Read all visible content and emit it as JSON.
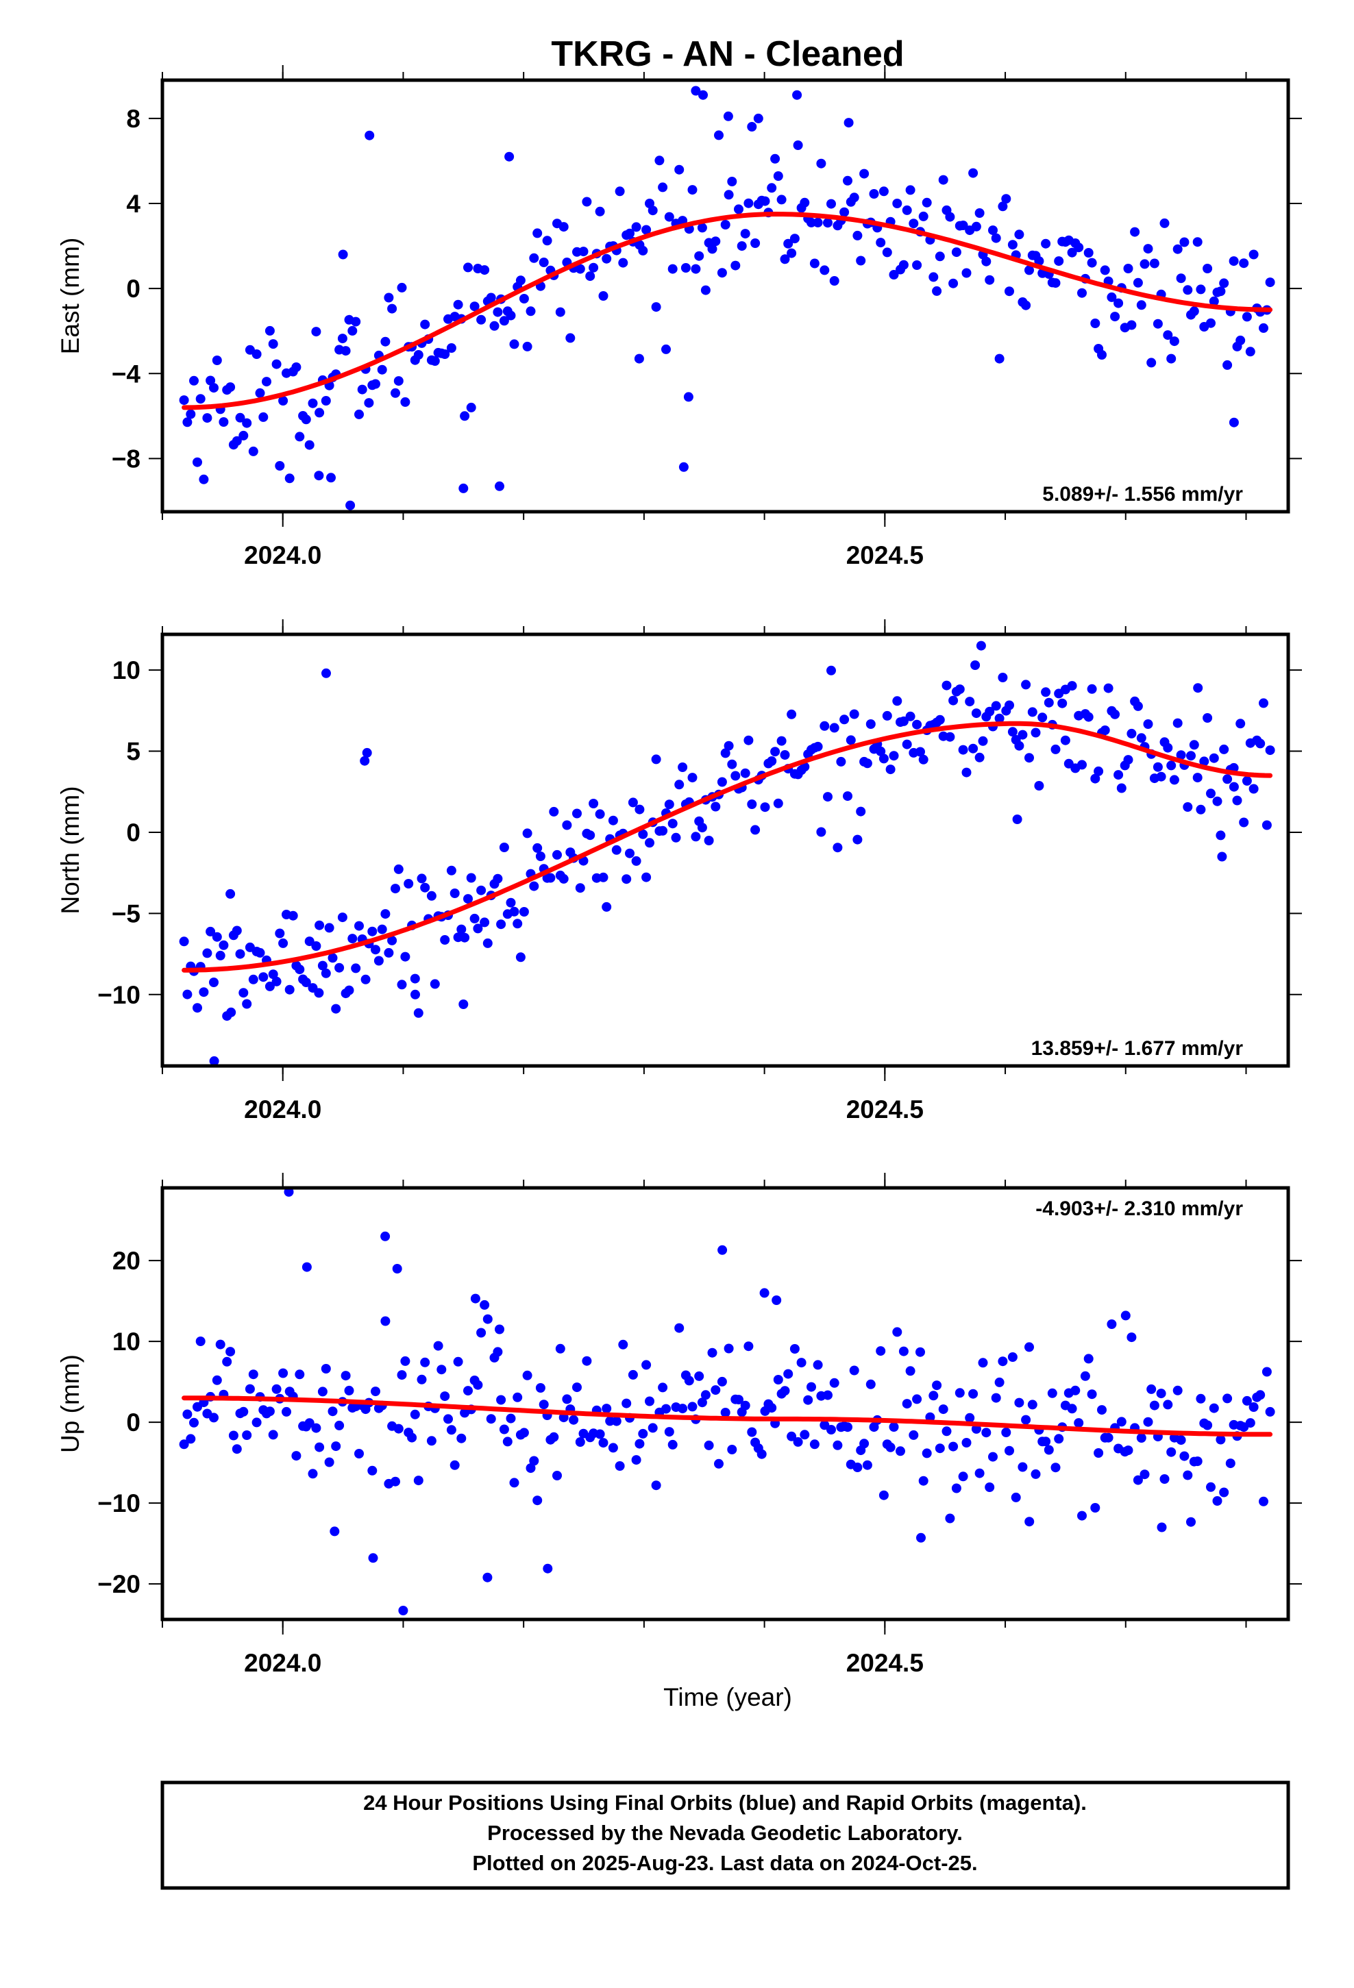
{
  "title": "TKRG  - AN - Cleaned",
  "xlabel": "Time (year)",
  "footer": {
    "line1": "24 Hour Positions Using Final Orbits (blue) and Rapid Orbits (magenta).",
    "line2": "Processed by the Nevada Geodetic Laboratory.",
    "line3": "Plotted on 2025-Aug-23. Last data on 2024-Oct-25."
  },
  "colors": {
    "points": "#0000ff",
    "fit": "#ff0000",
    "frame": "#000000"
  },
  "chart_data": [
    {
      "type": "scatter",
      "name": "east",
      "ylabel": "East (mm)",
      "rate_label": "5.089+/- 1.556 mm/yr",
      "rate_position": "bottom-right",
      "xlim": [
        2023.9,
        2024.835
      ],
      "ylim": [
        -10.5,
        9.8
      ],
      "x_ticks": [
        2024.0,
        2024.5
      ],
      "x_tick_labels": [
        "2024.0",
        "2024.5"
      ],
      "y_ticks": [
        -8,
        -4,
        0,
        4,
        8
      ],
      "y_tick_labels": [
        "−8",
        "−4",
        "0",
        "4",
        "8"
      ],
      "trend": {
        "start": [
          2023.918,
          -5.6
        ],
        "end": [
          2024.82,
          -1.0
        ],
        "peak": [
          2024.41,
          3.5
        ]
      },
      "outliers": [
        [
          2024.343,
          9.3
        ],
        [
          2024.349,
          9.1
        ],
        [
          2024.427,
          9.1
        ],
        [
          2024.37,
          8.1
        ],
        [
          2024.395,
          8.0
        ],
        [
          2024.47,
          7.8
        ],
        [
          2024.072,
          7.2
        ],
        [
          2024.188,
          6.2
        ],
        [
          2024.056,
          -10.2
        ],
        [
          2024.333,
          -8.4
        ],
        [
          2024.15,
          -9.4
        ],
        [
          2024.18,
          -9.3
        ],
        [
          2024.04,
          -8.9
        ],
        [
          2024.03,
          -8.8
        ],
        [
          2024.337,
          -5.1
        ],
        [
          2024.296,
          -3.3
        ],
        [
          2024.79,
          -6.3
        ],
        [
          2024.05,
          1.6
        ]
      ],
      "noise_mm": 1.6,
      "points": []
    },
    {
      "type": "scatter",
      "name": "north",
      "ylabel": "North (mm)",
      "rate_label": "13.859+/- 1.677 mm/yr",
      "rate_position": "bottom-right",
      "xlim": [
        2023.9,
        2024.835
      ],
      "ylim": [
        -14.4,
        12.2
      ],
      "x_ticks": [
        2024.0,
        2024.5
      ],
      "x_tick_labels": [
        "2024.0",
        "2024.5"
      ],
      "y_ticks": [
        -10,
        -5,
        0,
        5,
        10
      ],
      "y_tick_labels": [
        "−10",
        "−5",
        "0",
        "5",
        "10"
      ],
      "trend": {
        "start": [
          2023.918,
          -8.5
        ],
        "end": [
          2024.82,
          3.5
        ],
        "peak": [
          2024.61,
          6.7
        ]
      },
      "outliers": [
        [
          2024.036,
          9.8
        ],
        [
          2024.07,
          4.9
        ],
        [
          2024.068,
          4.4
        ],
        [
          2023.943,
          -14.1
        ],
        [
          2023.957,
          -11.1
        ],
        [
          2024.15,
          -10.6
        ],
        [
          2024.58,
          11.5
        ],
        [
          2024.575,
          10.3
        ],
        [
          2024.03,
          -9.9
        ],
        [
          2024.11,
          -10.0
        ],
        [
          2024.65,
          8.8
        ],
        [
          2024.76,
          8.9
        ],
        [
          2024.61,
          0.8
        ],
        [
          2024.78,
          -1.5
        ],
        [
          2024.79,
          2.8
        ]
      ],
      "noise_mm": 1.8,
      "points": []
    },
    {
      "type": "scatter",
      "name": "up",
      "ylabel": "Up (mm)",
      "rate_label": "-4.903+/- 2.310 mm/yr",
      "rate_position": "top-right",
      "xlim": [
        2023.9,
        2024.835
      ],
      "ylim": [
        -24.4,
        29.0
      ],
      "x_ticks": [
        2024.0,
        2024.5
      ],
      "x_tick_labels": [
        "2024.0",
        "2024.5"
      ],
      "y_ticks": [
        -20,
        -10,
        0,
        10,
        20
      ],
      "y_tick_labels": [
        "−20",
        "−10",
        "0",
        "10",
        "20"
      ],
      "trend": {
        "start": [
          2023.918,
          3.0
        ],
        "end": [
          2024.82,
          -1.5
        ],
        "peak": [
          2024.42,
          0.4
        ]
      },
      "outliers": [
        [
          2024.005,
          28.5
        ],
        [
          2024.085,
          23.0
        ],
        [
          2024.095,
          19.0
        ],
        [
          2024.02,
          19.2
        ],
        [
          2024.365,
          21.3
        ],
        [
          2024.4,
          16.0
        ],
        [
          2024.41,
          15.1
        ],
        [
          2024.1,
          -23.3
        ],
        [
          2024.17,
          -19.2
        ],
        [
          2024.22,
          -18.1
        ],
        [
          2024.075,
          -16.8
        ],
        [
          2024.043,
          -13.5
        ],
        [
          2024.18,
          11.5
        ],
        [
          2024.16,
          15.3
        ],
        [
          2024.7,
          13.2
        ],
        [
          2024.73,
          -13.0
        ],
        [
          2024.53,
          -14.3
        ],
        [
          2024.62,
          -12.3
        ]
      ],
      "noise_mm": 5.0,
      "points": []
    }
  ]
}
